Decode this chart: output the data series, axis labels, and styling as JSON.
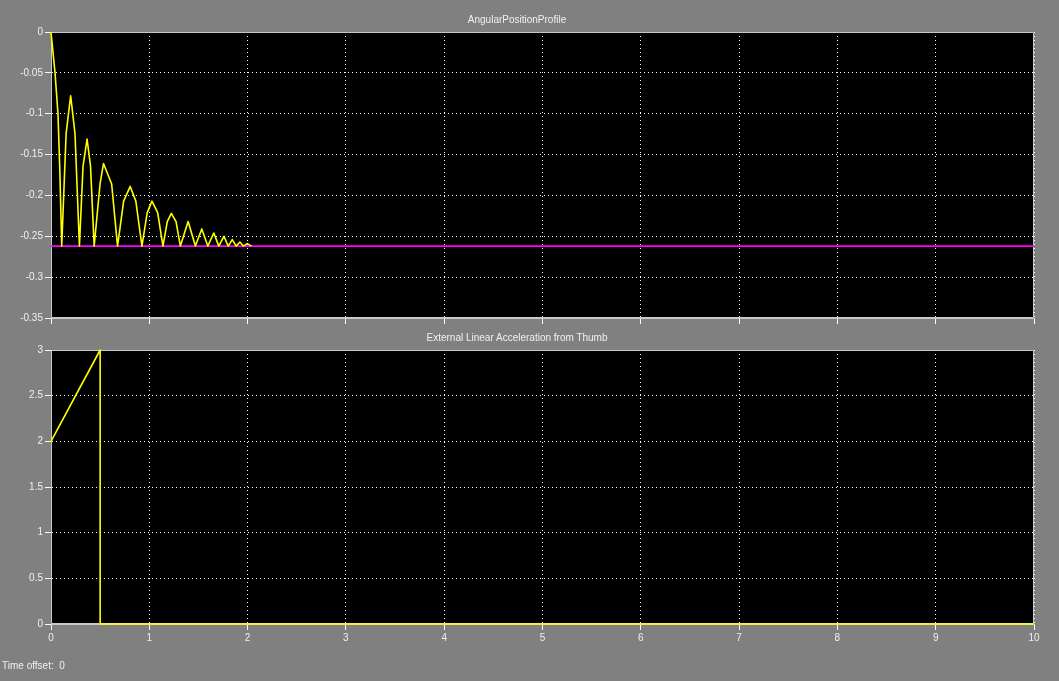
{
  "chart_data": [
    {
      "type": "line",
      "title": "AngularPositionProfile",
      "xlim": [
        0,
        10
      ],
      "xticks": [
        0,
        1,
        2,
        3,
        4,
        5,
        6,
        7,
        8,
        9,
        10
      ],
      "ylim": [
        -0.35,
        0
      ],
      "yticks": [
        -0.35,
        -0.3,
        -0.25,
        -0.2,
        -0.15,
        -0.1,
        -0.05,
        0
      ],
      "grid": true,
      "tick_labels": "y",
      "series": [
        {
          "color": "#ffff00",
          "x": [
            0,
            0.041,
            0.071,
            0.09,
            0.109,
            0.154,
            0.2,
            0.244,
            0.289,
            0.326,
            0.367,
            0.402,
            0.439,
            0.499,
            0.534,
            0.617,
            0.677,
            0.739,
            0.806,
            0.863,
            0.925,
            0.979,
            1.027,
            1.085,
            1.139,
            1.183,
            1.224,
            1.272,
            1.316,
            1.395,
            1.469,
            1.534,
            1.595,
            1.656,
            1.707,
            1.759,
            1.803,
            1.844,
            1.884,
            1.922,
            1.956,
            1.997,
            2.04
          ],
          "values": [
            0,
            -0.05,
            -0.1,
            -0.17,
            -0.262,
            -0.124,
            -0.078,
            -0.124,
            -0.262,
            -0.164,
            -0.131,
            -0.164,
            -0.262,
            -0.186,
            -0.161,
            -0.186,
            -0.262,
            -0.207,
            -0.189,
            -0.207,
            -0.262,
            -0.221,
            -0.207,
            -0.221,
            -0.262,
            -0.232,
            -0.222,
            -0.232,
            -0.262,
            -0.232,
            -0.262,
            -0.241,
            -0.262,
            -0.246,
            -0.262,
            -0.25,
            -0.262,
            -0.254,
            -0.262,
            -0.257,
            -0.262,
            -0.259,
            -0.262
          ]
        },
        {
          "color": "#ff00ff",
          "x": [
            0,
            10
          ],
          "values": [
            -0.262,
            -0.262
          ]
        }
      ]
    },
    {
      "type": "line",
      "title": "External Linear Acceleration from Thumb",
      "xlim": [
        0,
        10
      ],
      "xticks": [
        0,
        1,
        2,
        3,
        4,
        5,
        6,
        7,
        8,
        9,
        10
      ],
      "ylim": [
        0,
        3
      ],
      "yticks": [
        0,
        0.5,
        1,
        1.5,
        2,
        2.5,
        3
      ],
      "grid": true,
      "annotations": [
        "Time offset:  0"
      ],
      "series": [
        {
          "color": "#ffff00",
          "x": [
            0,
            0.5,
            0.5,
            10
          ],
          "values": [
            2,
            3,
            0,
            0
          ]
        }
      ]
    }
  ]
}
